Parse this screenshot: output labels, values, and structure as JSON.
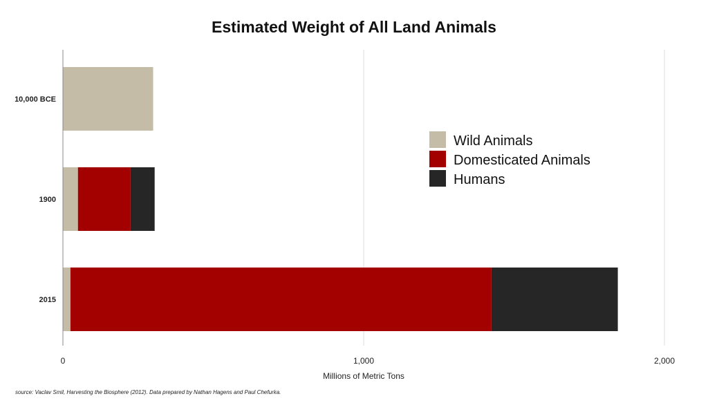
{
  "chart_data": {
    "type": "bar",
    "orientation": "horizontal",
    "stacked": true,
    "title": "Estimated Weight of All Land Animals",
    "xlabel": "Millions of Metric Tons",
    "ylabel": "",
    "xlim": [
      0,
      2000
    ],
    "x_ticks": [
      0,
      1000,
      2000
    ],
    "x_tick_labels": [
      "0",
      "1,000",
      "2,000"
    ],
    "grid": "vertical",
    "legend_position": "right",
    "categories": [
      "10,000 BCE",
      "1900",
      "2015"
    ],
    "series": [
      {
        "name": "Wild Animals",
        "color": "#c5bca7",
        "values": [
          300,
          50,
          25
        ]
      },
      {
        "name": "Domesticated Animals",
        "color": "#a30000",
        "values": [
          0,
          175,
          1400
        ]
      },
      {
        "name": "Humans",
        "color": "#262626",
        "values": [
          0,
          80,
          420
        ]
      }
    ]
  },
  "source": "source: Vaclav Smil, Harvesting the Biosphere (2012). Data prepared by Nathan Hagens and Paul Chefurka."
}
